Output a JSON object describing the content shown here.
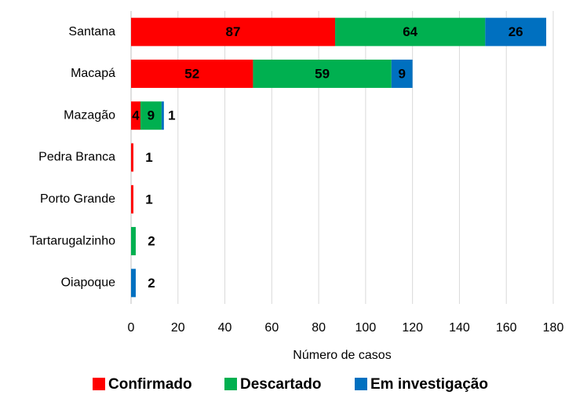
{
  "chart_data": {
    "type": "stacked-barh",
    "categories": [
      "Santana",
      "Macapá",
      "Mazagão",
      "Pedra Branca",
      "Porto Grande",
      "Tartarugalzinho",
      "Oiapoque"
    ],
    "series": [
      {
        "name": "Confirmado",
        "color": "#ff0000",
        "values": [
          87,
          52,
          4,
          1,
          1,
          0,
          0
        ]
      },
      {
        "name": "Descartado",
        "color": "#00b050",
        "values": [
          64,
          59,
          9,
          0,
          0,
          2,
          0
        ]
      },
      {
        "name": "Em investigação",
        "color": "#0070c0",
        "values": [
          26,
          9,
          1,
          0,
          0,
          0,
          2
        ]
      }
    ],
    "xlabel": "Número de casos",
    "xlim": [
      0,
      180
    ],
    "xticks": [
      0,
      20,
      40,
      60,
      80,
      100,
      120,
      140,
      160,
      180
    ],
    "grid": true,
    "legend": "bottom"
  }
}
